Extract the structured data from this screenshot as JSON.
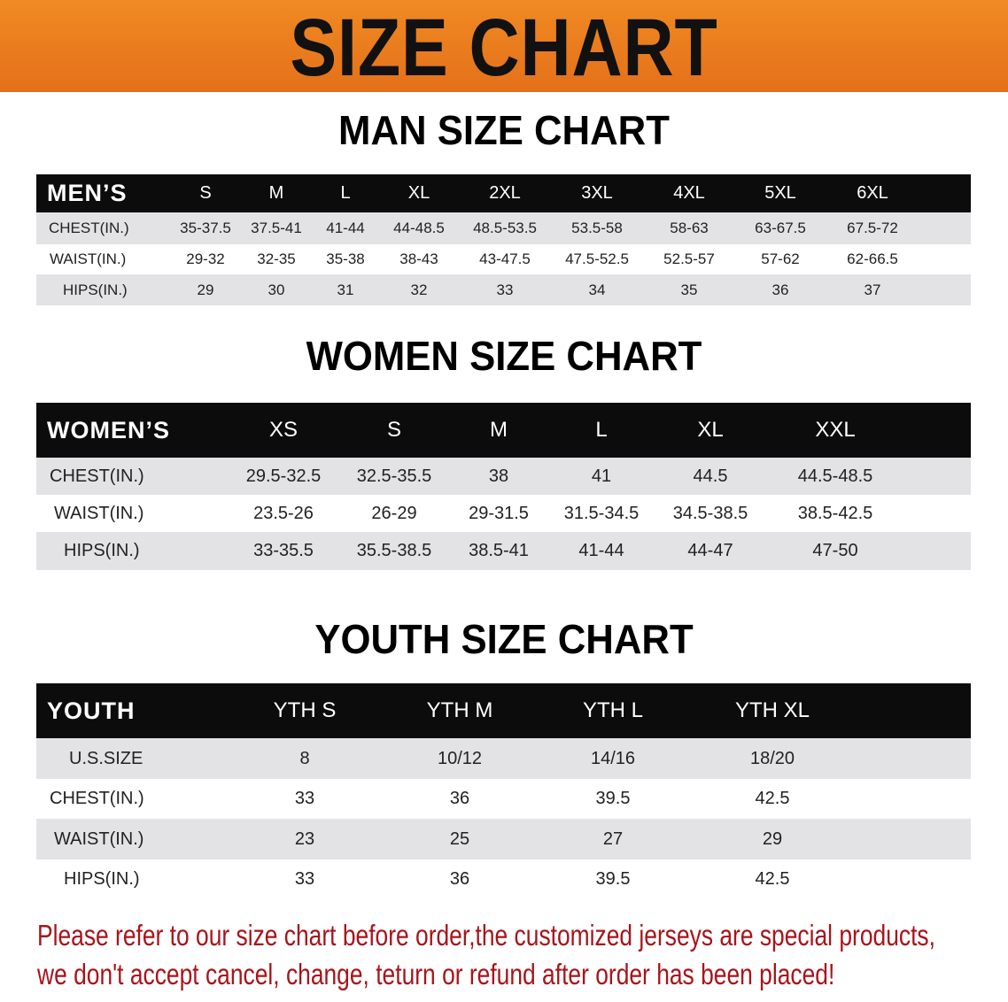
{
  "banner_title": "SIZE CHART",
  "men": {
    "title": "MAN SIZE CHART",
    "header_label": "MEN’S",
    "sizes": [
      "S",
      "M",
      "L",
      "XL",
      "2XL",
      "3XL",
      "4XL",
      "5XL",
      "6XL"
    ],
    "rows": [
      {
        "label": "CHEST(IN.)",
        "values": [
          "35-37.5",
          "37.5-41",
          "41-44",
          "44-48.5",
          "48.5-53.5",
          "53.5-58",
          "58-63",
          "63-67.5",
          "67.5-72"
        ]
      },
      {
        "label": "WAIST(IN.)",
        "values": [
          "29-32",
          "32-35",
          "35-38",
          "38-43",
          "43-47.5",
          "47.5-52.5",
          "52.5-57",
          "57-62",
          "62-66.5"
        ]
      },
      {
        "label": "HIPS(IN.)",
        "values": [
          "29",
          "30",
          "31",
          "32",
          "33",
          "34",
          "35",
          "36",
          "37"
        ]
      }
    ]
  },
  "women": {
    "title": "WOMEN SIZE CHART",
    "header_label": "WOMEN’S",
    "sizes": [
      "XS",
      "S",
      "M",
      "L",
      "XL",
      "XXL"
    ],
    "rows": [
      {
        "label": "CHEST(IN.)",
        "values": [
          "29.5-32.5",
          "32.5-35.5",
          "38",
          "41",
          "44.5",
          "44.5-48.5"
        ]
      },
      {
        "label": "WAIST(IN.)",
        "values": [
          "23.5-26",
          "26-29",
          "29-31.5",
          "31.5-34.5",
          "34.5-38.5",
          "38.5-42.5"
        ]
      },
      {
        "label": "HIPS(IN.)",
        "values": [
          "33-35.5",
          "35.5-38.5",
          "38.5-41",
          "41-44",
          "44-47",
          "47-50"
        ]
      }
    ]
  },
  "youth": {
    "title": "YOUTH SIZE CHART",
    "header_label": "YOUTH",
    "sizes": [
      "YTH S",
      "YTH M",
      "YTH L",
      "YTH XL"
    ],
    "rows": [
      {
        "label": "U.S.SIZE",
        "values": [
          "8",
          "10/12",
          "14/16",
          "18/20"
        ]
      },
      {
        "label": "CHEST(IN.)",
        "values": [
          "33",
          "36",
          "39.5",
          "42.5"
        ]
      },
      {
        "label": "WAIST(IN.)",
        "values": [
          "23",
          "25",
          "27",
          "29"
        ]
      },
      {
        "label": "HIPS(IN.)",
        "values": [
          "33",
          "36",
          "39.5",
          "42.5"
        ]
      }
    ]
  },
  "note": {
    "line1": "Please refer to our size chart before order,the customized jerseys are special products,",
    "line2": "we don't accept cancel, change, teturn or refund after order has been placed!",
    "color": "#a8141b"
  },
  "colors": {
    "banner": "#e97a1e",
    "header": "#0c0c0c",
    "stripe": "#e3e3e5"
  }
}
